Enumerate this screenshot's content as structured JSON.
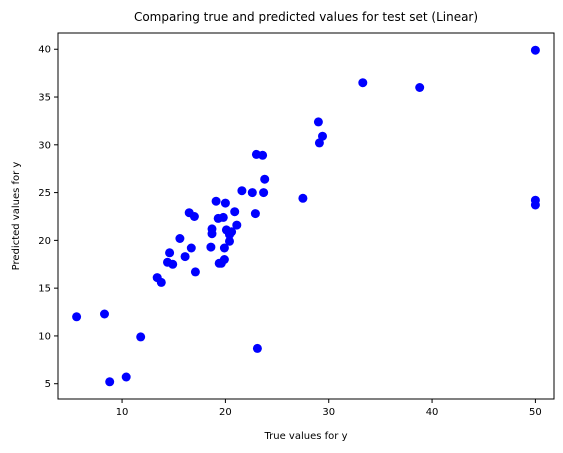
{
  "chart_data": {
    "type": "scatter",
    "title": "Comparing true and predicted values for test set (Linear)",
    "xlabel": "True values for y",
    "ylabel": "Predicted values for y",
    "xlim": [
      3.8,
      51.8
    ],
    "ylim": [
      3.4,
      41.7
    ],
    "xticks": [
      10,
      20,
      30,
      40,
      50
    ],
    "yticks": [
      5,
      10,
      15,
      20,
      25,
      30,
      35,
      40
    ],
    "grid": false,
    "marker_color": "#0000ff",
    "points": [
      {
        "x": 5.6,
        "y": 12.0
      },
      {
        "x": 8.3,
        "y": 12.3
      },
      {
        "x": 8.8,
        "y": 5.2
      },
      {
        "x": 10.4,
        "y": 5.7
      },
      {
        "x": 11.8,
        "y": 9.9
      },
      {
        "x": 13.4,
        "y": 16.1
      },
      {
        "x": 13.8,
        "y": 15.6
      },
      {
        "x": 14.4,
        "y": 17.7
      },
      {
        "x": 14.6,
        "y": 18.7
      },
      {
        "x": 14.9,
        "y": 17.5
      },
      {
        "x": 15.6,
        "y": 20.2
      },
      {
        "x": 16.1,
        "y": 18.3
      },
      {
        "x": 16.5,
        "y": 22.9
      },
      {
        "x": 16.7,
        "y": 19.2
      },
      {
        "x": 17.0,
        "y": 22.5
      },
      {
        "x": 17.1,
        "y": 16.7
      },
      {
        "x": 18.6,
        "y": 19.3
      },
      {
        "x": 18.7,
        "y": 21.2
      },
      {
        "x": 18.7,
        "y": 20.7
      },
      {
        "x": 19.1,
        "y": 24.1
      },
      {
        "x": 19.3,
        "y": 22.3
      },
      {
        "x": 19.4,
        "y": 17.6
      },
      {
        "x": 19.6,
        "y": 17.6
      },
      {
        "x": 19.8,
        "y": 22.4
      },
      {
        "x": 19.9,
        "y": 18.0
      },
      {
        "x": 19.9,
        "y": 19.2
      },
      {
        "x": 20.0,
        "y": 23.9
      },
      {
        "x": 20.1,
        "y": 21.1
      },
      {
        "x": 20.4,
        "y": 20.6
      },
      {
        "x": 20.4,
        "y": 19.9
      },
      {
        "x": 20.6,
        "y": 20.9
      },
      {
        "x": 20.9,
        "y": 23.0
      },
      {
        "x": 21.1,
        "y": 21.6
      },
      {
        "x": 21.6,
        "y": 25.2
      },
      {
        "x": 22.6,
        "y": 25.0
      },
      {
        "x": 22.9,
        "y": 22.8
      },
      {
        "x": 23.0,
        "y": 29.0
      },
      {
        "x": 23.1,
        "y": 8.7
      },
      {
        "x": 23.6,
        "y": 28.9
      },
      {
        "x": 23.7,
        "y": 25.0
      },
      {
        "x": 23.8,
        "y": 26.4
      },
      {
        "x": 27.5,
        "y": 24.4
      },
      {
        "x": 29.0,
        "y": 32.4
      },
      {
        "x": 29.1,
        "y": 30.2
      },
      {
        "x": 29.4,
        "y": 30.9
      },
      {
        "x": 33.3,
        "y": 36.5
      },
      {
        "x": 38.8,
        "y": 36.0
      },
      {
        "x": 50.0,
        "y": 39.9
      },
      {
        "x": 50.0,
        "y": 24.2
      },
      {
        "x": 50.0,
        "y": 23.7
      }
    ]
  }
}
